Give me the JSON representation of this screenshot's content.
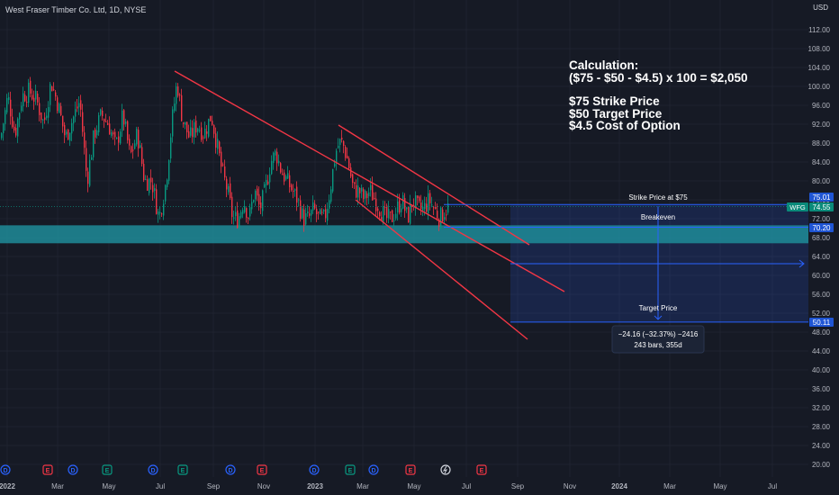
{
  "header": {
    "title": "West Fraser Timber Co. Ltd, 1D, NYSE",
    "currency": "USD"
  },
  "annotations": {
    "calc_title": "Calculation:",
    "calc_formula": "($75 - $50 - $4.5) x 100 = $2,050",
    "calc_line1": "$75 Strike Price",
    "calc_line2": "$50 Target Price",
    "calc_line3": "$4.5 Cost of Option",
    "strike_label": "Strike Price at $75",
    "breakeven_label": "Breakeven",
    "target_label": "Target Price",
    "measure_line1": "−24.16 (−32.37%) −2416",
    "measure_line2": "243 bars, 355d"
  },
  "colors": {
    "background": "#161a25",
    "up": "#089981",
    "down": "#f23645",
    "channel": "#f23645",
    "level": "#2962ff",
    "zone": "#1e8c99",
    "badge_wfg": "#0a8a7a",
    "badge_level": "#1f55d4",
    "event_dividend": "#2962ff",
    "event_earnings_red": "#f23645",
    "event_earnings_green": "#089981"
  },
  "chart_data": {
    "type": "candlestick",
    "symbol": "WFG",
    "last_price": 74.55,
    "ylim": [
      18,
      116
    ],
    "y_ticks": [
      "20.00",
      "24.00",
      "28.00",
      "32.00",
      "36.00",
      "40.00",
      "44.00",
      "48.00",
      "52.00",
      "56.00",
      "60.00",
      "64.00",
      "68.00",
      "72.00",
      "76.00",
      "80.00",
      "84.00",
      "88.00",
      "92.00",
      "96.00",
      "100.00",
      "104.00",
      "108.00",
      "112.00"
    ],
    "x_ticks": [
      "2022",
      "Mar",
      "May",
      "Jul",
      "Sep",
      "Nov",
      "2023",
      "Mar",
      "May",
      "Jul",
      "Sep",
      "Nov",
      "2024",
      "Mar",
      "May",
      "Jul"
    ],
    "price_labels": [
      {
        "text": "75.01",
        "kind": "level"
      },
      {
        "text": "74.55",
        "kind": "last",
        "symbol": "WFG"
      },
      {
        "text": "70.20",
        "kind": "level"
      },
      {
        "text": "50.11",
        "kind": "level"
      }
    ],
    "levels": {
      "strike": 75.01,
      "breakeven": 70.2,
      "target": 50.11
    },
    "support_zone": [
      66.8,
      70.6
    ],
    "close_anchors": [
      [
        0,
        89
      ],
      [
        8,
        98
      ],
      [
        16,
        90
      ],
      [
        24,
        98
      ],
      [
        32,
        99
      ],
      [
        40,
        97
      ],
      [
        48,
        92
      ],
      [
        56,
        101
      ],
      [
        64,
        96
      ],
      [
        72,
        89
      ],
      [
        80,
        93
      ],
      [
        88,
        97
      ],
      [
        96,
        80
      ],
      [
        104,
        90
      ],
      [
        112,
        94
      ],
      [
        120,
        92
      ],
      [
        128,
        87
      ],
      [
        136,
        94
      ],
      [
        144,
        85
      ],
      [
        152,
        90
      ],
      [
        160,
        80
      ],
      [
        168,
        80
      ],
      [
        176,
        72
      ],
      [
        184,
        80
      ],
      [
        190,
        92
      ],
      [
        196,
        101
      ],
      [
        202,
        93
      ],
      [
        210,
        89
      ],
      [
        218,
        92
      ],
      [
        226,
        90
      ],
      [
        234,
        94
      ],
      [
        240,
        88
      ],
      [
        246,
        82
      ],
      [
        252,
        78
      ],
      [
        258,
        72
      ],
      [
        264,
        72
      ],
      [
        270,
        76
      ],
      [
        276,
        72
      ],
      [
        282,
        78
      ],
      [
        288,
        74
      ],
      [
        294,
        78
      ],
      [
        300,
        84
      ],
      [
        306,
        86
      ],
      [
        312,
        82
      ],
      [
        318,
        80
      ],
      [
        324,
        78
      ],
      [
        330,
        76
      ],
      [
        336,
        72
      ],
      [
        342,
        72
      ],
      [
        348,
        74
      ],
      [
        354,
        72
      ],
      [
        360,
        72
      ],
      [
        366,
        78
      ],
      [
        372,
        86
      ],
      [
        376,
        88
      ],
      [
        380,
        88
      ],
      [
        386,
        84
      ],
      [
        392,
        78
      ],
      [
        398,
        78
      ],
      [
        404,
        76
      ],
      [
        410,
        78
      ],
      [
        416,
        76
      ],
      [
        422,
        74
      ],
      [
        428,
        72
      ],
      [
        434,
        72
      ],
      [
        440,
        74
      ],
      [
        446,
        76
      ],
      [
        452,
        72
      ],
      [
        458,
        76
      ],
      [
        464,
        74
      ],
      [
        470,
        74
      ],
      [
        476,
        76
      ],
      [
        482,
        74
      ],
      [
        488,
        72
      ],
      [
        494,
        74
      ],
      [
        498,
        74.5
      ]
    ],
    "events": [
      {
        "type": "D"
      },
      {
        "type": "E"
      },
      {
        "type": "D"
      },
      {
        "type": "E"
      },
      {
        "type": "D"
      },
      {
        "type": "E"
      },
      {
        "type": "D"
      },
      {
        "type": "E"
      },
      {
        "type": "D"
      },
      {
        "type": "E"
      },
      {
        "type": "D"
      },
      {
        "type": "E"
      },
      {
        "type": "split"
      },
      {
        "type": "E"
      }
    ]
  }
}
